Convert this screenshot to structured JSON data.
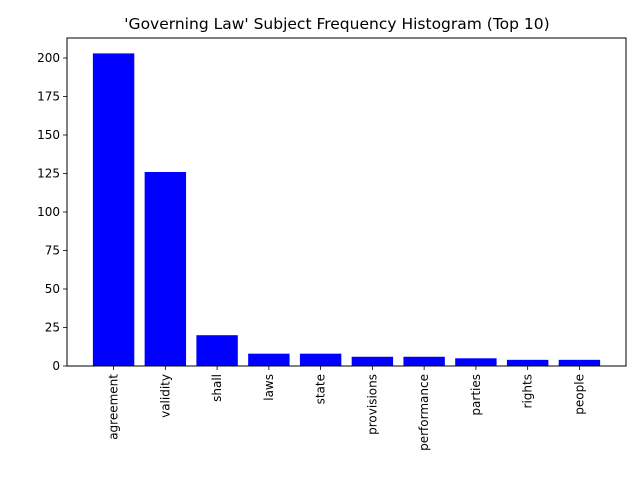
{
  "chart_data": {
    "type": "bar",
    "title": "'Governing Law' Subject Frequency Histogram (Top 10)",
    "xlabel": "",
    "ylabel": "",
    "categories": [
      "agreement",
      "validity",
      "shall",
      "laws",
      "state",
      "provisions",
      "performance",
      "parties",
      "rights",
      "people"
    ],
    "values": [
      203,
      126,
      20,
      8,
      8,
      6,
      6,
      5,
      4,
      4
    ],
    "ylim": [
      0,
      213
    ],
    "yticks": [
      0,
      25,
      50,
      75,
      100,
      125,
      150,
      175,
      200
    ],
    "ytick_labels": [
      "0",
      "25",
      "50",
      "75",
      "100",
      "125",
      "150",
      "175",
      "200"
    ],
    "grid": false,
    "bar_color": "#0000ff"
  }
}
